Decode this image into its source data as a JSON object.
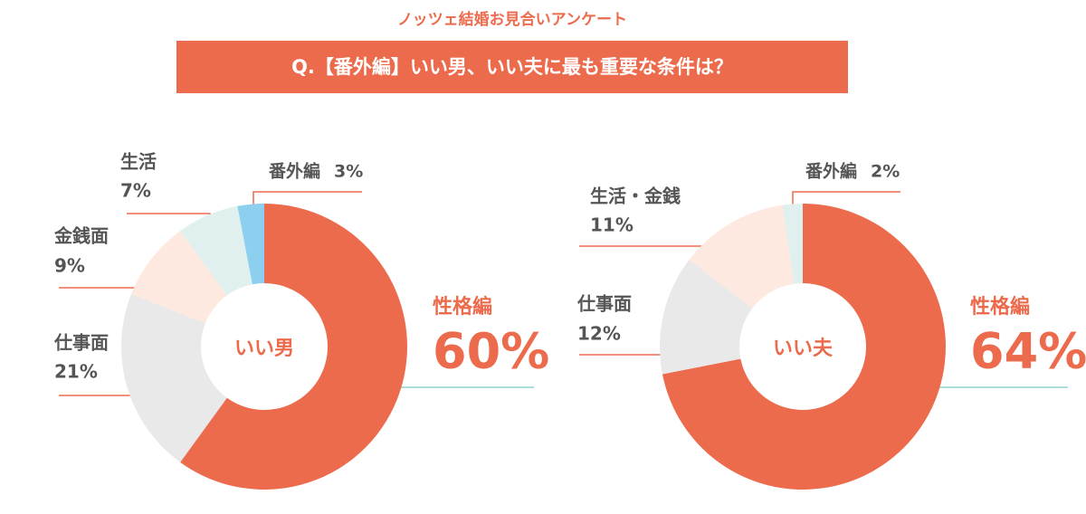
{
  "header": {
    "subtitle": "ノッツェ結婚お見合いアンケート",
    "title": "Q.【番外編】いい男、いい夫に最も重要な条件は？"
  },
  "chart_data": [
    {
      "type": "donut",
      "center_label": "いい男",
      "categories": [
        "性格編",
        "仕事面",
        "金銭面",
        "生活",
        "番外編"
      ],
      "values": [
        60,
        21,
        9,
        7,
        3
      ],
      "value_labels": [
        "60%",
        "21%",
        "9%",
        "7%",
        "3%"
      ],
      "colors": [
        "#ec6b4c",
        "#e9e9e9",
        "#fde9df",
        "#dff0ee",
        "#8ccfee"
      ]
    },
    {
      "type": "donut",
      "center_label": "いい夫",
      "categories": [
        "性格編",
        "仕事面",
        "生活・金銭",
        "番外編"
      ],
      "values": [
        64,
        12,
        11,
        2
      ],
      "value_labels": [
        "64%",
        "12%",
        "11%",
        "2%"
      ],
      "colors": [
        "#ec6b4c",
        "#e9e9e9",
        "#fde9df",
        "#dff0ee"
      ]
    }
  ]
}
